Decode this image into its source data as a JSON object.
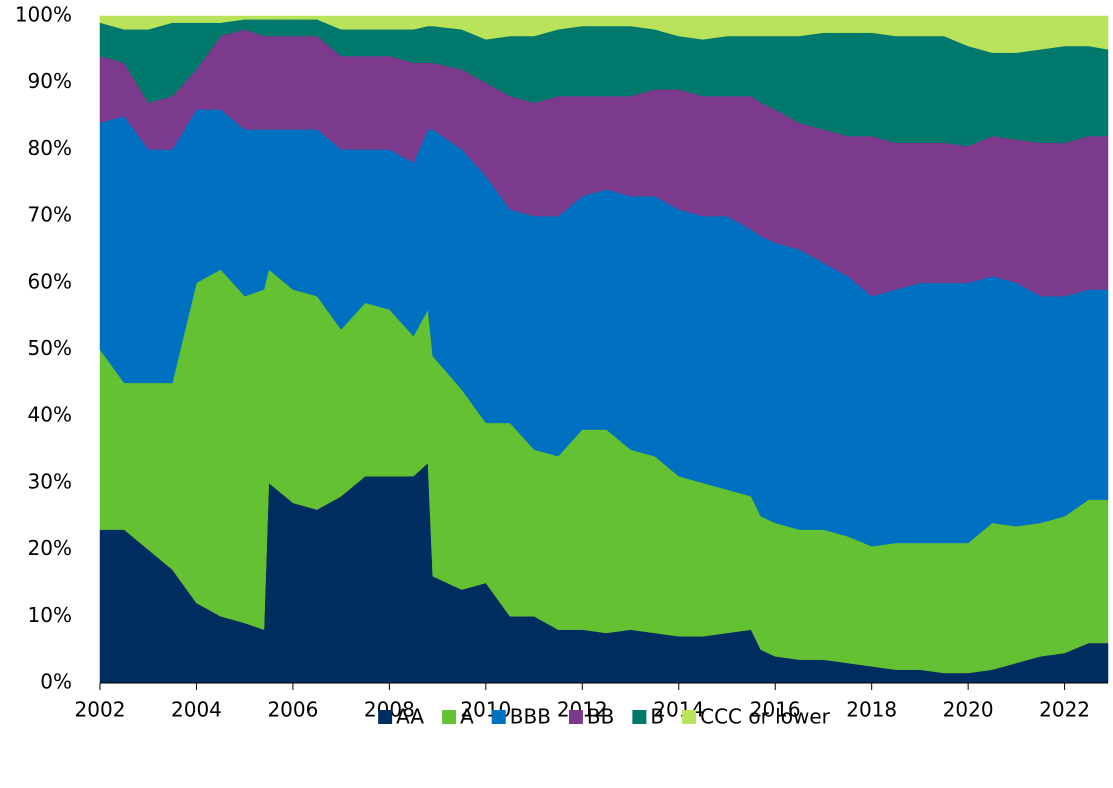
{
  "chart_data": {
    "type": "stacked_area",
    "x": [
      2002.0,
      2002.5,
      2003.0,
      2003.5,
      2004.0,
      2004.5,
      2005.0,
      2005.4,
      2005.5,
      2006.0,
      2006.5,
      2007.0,
      2007.5,
      2008.0,
      2008.5,
      2008.8,
      2008.9,
      2009.5,
      2010.0,
      2010.5,
      2011.0,
      2011.5,
      2012.0,
      2012.5,
      2013.0,
      2013.5,
      2014.0,
      2014.5,
      2015.0,
      2015.5,
      2015.7,
      2016.0,
      2016.5,
      2017.0,
      2017.5,
      2018.0,
      2018.5,
      2019.0,
      2019.5,
      2020.0,
      2020.5,
      2021.0,
      2021.5,
      2022.0,
      2022.5,
      2022.9
    ],
    "series": [
      {
        "name": "AA",
        "color": "#002d5f",
        "values": [
          23,
          23,
          20,
          17,
          12,
          10,
          9,
          8,
          30,
          27,
          26,
          28,
          31,
          31,
          31,
          33,
          16,
          14,
          15,
          10,
          10,
          8,
          8,
          7.5,
          8,
          7.5,
          7,
          7,
          7.5,
          8,
          5,
          4,
          3.5,
          3.5,
          3,
          2.5,
          2,
          2,
          1.5,
          1.5,
          2,
          3,
          4,
          4.5,
          6,
          6
        ]
      },
      {
        "name": "A",
        "color": "#63c132",
        "values": [
          27,
          22,
          25,
          28,
          48,
          52,
          49,
          51,
          32,
          32,
          32,
          25,
          26,
          25,
          21,
          23,
          33,
          30,
          24,
          29,
          25,
          26,
          30,
          30.5,
          27,
          26.5,
          24,
          23,
          21.5,
          20,
          20,
          20,
          19.5,
          19.5,
          19,
          18,
          19,
          19,
          19.5,
          19.5,
          22,
          20.5,
          20,
          20.5,
          21.5,
          21.5
        ]
      },
      {
        "name": "BBB",
        "color": "#0070c0",
        "values": [
          34,
          40,
          35,
          35,
          26,
          24,
          25,
          24,
          21,
          24,
          25,
          27,
          23,
          24,
          26,
          27,
          34,
          36,
          37,
          32,
          35,
          36,
          35,
          36,
          38,
          39,
          40,
          40,
          41,
          40,
          42,
          42,
          42,
          40,
          39,
          37.5,
          38,
          39,
          39,
          39,
          37,
          36.5,
          34,
          33,
          31.5,
          31.5
        ]
      },
      {
        "name": "BB",
        "color": "#7b3a8c",
        "values": [
          10,
          8,
          7,
          8,
          6,
          11,
          15,
          14,
          14,
          14,
          14,
          14,
          14,
          14,
          15,
          10,
          10,
          12,
          14,
          17,
          17,
          18,
          15,
          14,
          15,
          16,
          18,
          18,
          18,
          20,
          20,
          20,
          19,
          20,
          21,
          24,
          22,
          21,
          21,
          20.5,
          21,
          21.5,
          23,
          23,
          23,
          23
        ]
      },
      {
        "name": "B",
        "color": "#00786b",
        "values": [
          5,
          5,
          11,
          11,
          7,
          2,
          1.5,
          2.5,
          2.5,
          2.5,
          2.5,
          4,
          4,
          4,
          5,
          5.5,
          5.5,
          6,
          6.5,
          9,
          10,
          10,
          10.5,
          10.5,
          10.5,
          9,
          8,
          8.5,
          9,
          9,
          10,
          11,
          13,
          14.5,
          15.5,
          15.5,
          16,
          16,
          16,
          15,
          12.5,
          13,
          14,
          14.5,
          13.5,
          13
        ]
      },
      {
        "name": "CCC or lower",
        "color": "#b8e35a",
        "values": [
          1,
          2,
          2,
          1,
          1,
          1,
          0.5,
          0.5,
          0.5,
          0.5,
          0.5,
          2,
          2,
          2,
          2,
          1.5,
          1.5,
          2,
          3.5,
          3,
          3,
          2,
          1.5,
          1.5,
          1.5,
          2,
          3,
          3.5,
          3,
          3,
          3,
          3,
          3,
          2.5,
          2.5,
          2.5,
          3,
          3,
          3,
          4.5,
          5.5,
          5.5,
          5,
          4.5,
          4.5,
          5
        ]
      }
    ],
    "xlim": [
      2002,
      2022.9
    ],
    "xticks": [
      2002,
      2004,
      2006,
      2008,
      2010,
      2012,
      2014,
      2016,
      2018,
      2020,
      2022
    ],
    "ylim": [
      0,
      100
    ],
    "yticks": [
      {
        "value": 0,
        "label": "0%"
      },
      {
        "value": 10,
        "label": "10%"
      },
      {
        "value": 20,
        "label": "20%"
      },
      {
        "value": 30,
        "label": "30%"
      },
      {
        "value": 40,
        "label": "40%"
      },
      {
        "value": 50,
        "label": "50%"
      },
      {
        "value": 60,
        "label": "60%"
      },
      {
        "value": 70,
        "label": "70%"
      },
      {
        "value": 80,
        "label": "80%"
      },
      {
        "value": 90,
        "label": "90%"
      },
      {
        "value": 100,
        "label": "100%"
      }
    ],
    "legend": "bottom"
  }
}
